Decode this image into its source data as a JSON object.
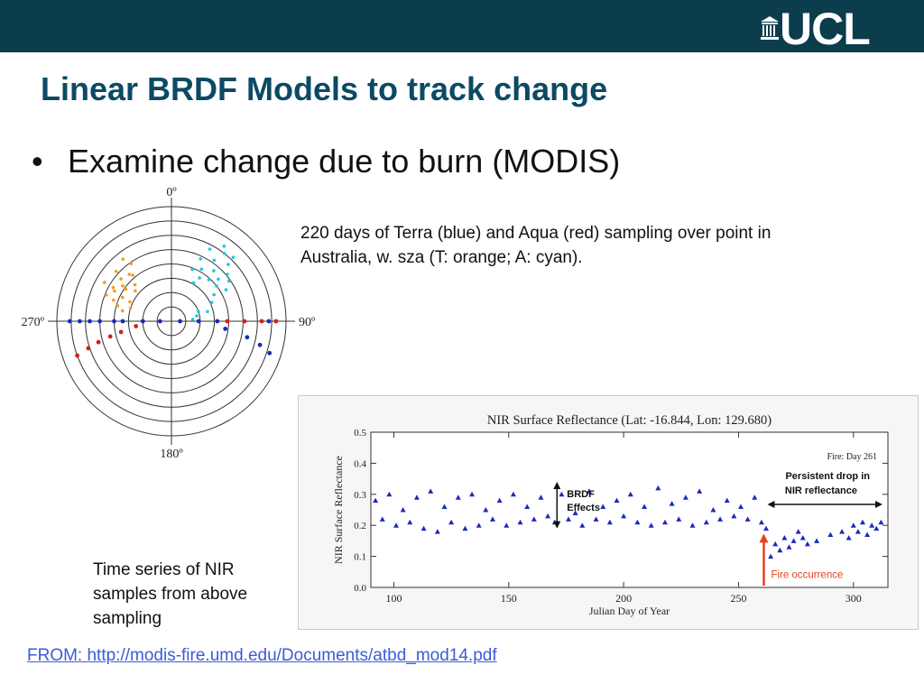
{
  "logo": {
    "text": "UCL"
  },
  "title": "Linear BRDF Models to track change",
  "bullet": "Examine change due to burn (MODIS)",
  "caption_top": "220 days of Terra (blue) and Aqua (red) sampling over point in Australia, w. sza (T: orange; A: cyan).",
  "caption_bottom": "Time series of NIR samples from above sampling",
  "from_link": "FROM: http://modis-fire.umd.edu/Documents/atbd_mod14.pdf",
  "colors": {
    "header_bar": "#0b3d4c",
    "title": "#0b4a64",
    "terra": "#1a2bb8",
    "aqua": "#d02020",
    "terra_sza": "#f0a020",
    "aqua_sza": "#20c8d8",
    "fire_arrow": "#e8401c",
    "link": "#3a5bd9"
  },
  "chart_data": [
    {
      "type": "scatter",
      "subtype": "polar",
      "angle_labels": [
        "0º",
        "90º",
        "180º",
        "270º"
      ],
      "rings": 8,
      "series": [
        {
          "color": "blue",
          "points": [
            [
              270,
              7.1
            ],
            [
              270,
              6.4
            ],
            [
              270,
              5.7
            ],
            [
              270,
              5.0
            ],
            [
              270,
              4.0
            ],
            [
              270,
              3.4
            ],
            [
              270,
              2.0
            ],
            [
              270,
              0.8
            ],
            [
              90,
              0.6
            ],
            [
              90,
              1.9
            ],
            [
              90,
              3.2
            ],
            [
              90,
              6.8
            ],
            [
              98,
              3.8
            ],
            [
              102,
              5.4
            ],
            [
              105,
              6.4
            ],
            [
              108,
              7.2
            ]
          ]
        },
        {
          "color": "red",
          "points": [
            [
              90,
              3.9
            ],
            [
              90,
              5.1
            ],
            [
              90,
              6.3
            ],
            [
              90,
              7.3
            ],
            [
              262,
              2.5
            ],
            [
              258,
              3.6
            ],
            [
              256,
              4.4
            ],
            [
              254,
              5.3
            ],
            [
              252,
              6.1
            ],
            [
              250,
              7.0
            ]
          ]
        },
        {
          "color": "orange",
          "points": [
            [
              320,
              4.2
            ],
            [
              310,
              4.6
            ],
            [
              300,
              4.7
            ],
            [
              290,
              4.3
            ],
            [
              282,
              3.5
            ],
            [
              315,
              3.6
            ],
            [
              305,
              3.9
            ],
            [
              296,
              3.8
            ],
            [
              288,
              3.0
            ],
            [
              325,
              4.9
            ],
            [
              312,
              5.2
            ],
            [
              300,
              5.4
            ],
            [
              292,
              4.9
            ],
            [
              318,
              4.4
            ],
            [
              306,
              4.2
            ],
            [
              298,
              4.5
            ],
            [
              286,
              3.9
            ],
            [
              310,
              3.3
            ],
            [
              322,
              5.5
            ],
            [
              295,
              3.2
            ]
          ]
        },
        {
          "color": "cyan",
          "points": [
            [
              30,
              4.2
            ],
            [
              40,
              4.6
            ],
            [
              50,
              5.1
            ],
            [
              35,
              5.2
            ],
            [
              45,
              5.6
            ],
            [
              28,
              5.7
            ],
            [
              38,
              6.0
            ],
            [
              48,
              4.4
            ],
            [
              55,
              4.9
            ],
            [
              25,
              4.8
            ],
            [
              33,
              3.6
            ],
            [
              42,
              3.9
            ],
            [
              52,
              4.0
            ],
            [
              60,
              4.4
            ],
            [
              70,
              2.0
            ],
            [
              78,
              1.8
            ],
            [
              85,
              1.5
            ],
            [
              75,
              2.6
            ],
            [
              65,
              3.1
            ],
            [
              58,
              3.5
            ],
            [
              35,
              6.4
            ],
            [
              44,
              6.2
            ],
            [
              30,
              3.1
            ],
            [
              22,
              3.9
            ]
          ]
        }
      ]
    },
    {
      "type": "scatter",
      "title": "NIR Surface Reflectance (Lat: -16.844, Lon: 129.680)",
      "xlabel": "Julian Day of Year",
      "ylabel": "NIR Surface Reflectance",
      "xlim": [
        90,
        315
      ],
      "ylim": [
        0.0,
        0.5
      ],
      "xticks": [
        100,
        150,
        200,
        250,
        300
      ],
      "yticks": [
        0.0,
        0.1,
        0.2,
        0.3,
        0.4,
        0.5
      ],
      "annotations": {
        "fire_day": "Fire: Day 261",
        "persistent_line1": "Persistent drop in",
        "persistent_line2": "NIR reflectance",
        "brdf_line1": "BRDF",
        "brdf_line2": "Effects",
        "fire_occurrence": "Fire occurrence"
      },
      "marker": "triangle",
      "series": [
        {
          "color": "blue",
          "x": [
            92,
            95,
            98,
            101,
            104,
            107,
            110,
            113,
            116,
            119,
            122,
            125,
            128,
            131,
            134,
            137,
            140,
            143,
            146,
            149,
            152,
            155,
            158,
            161,
            164,
            167,
            170,
            173,
            176,
            179,
            182,
            185,
            188,
            191,
            194,
            197,
            200,
            203,
            206,
            209,
            212,
            215,
            218,
            221,
            224,
            227,
            230,
            233,
            236,
            239,
            242,
            245,
            248,
            251,
            254,
            257,
            260,
            262,
            264,
            266,
            268,
            270,
            272,
            274,
            276,
            278,
            280,
            284,
            290,
            295,
            298,
            300,
            302,
            304,
            306,
            308,
            310,
            312
          ],
          "y": [
            0.28,
            0.22,
            0.3,
            0.2,
            0.25,
            0.21,
            0.29,
            0.19,
            0.31,
            0.18,
            0.26,
            0.21,
            0.29,
            0.19,
            0.3,
            0.2,
            0.25,
            0.22,
            0.28,
            0.2,
            0.3,
            0.21,
            0.26,
            0.22,
            0.29,
            0.23,
            0.21,
            0.3,
            0.22,
            0.24,
            0.2,
            0.31,
            0.22,
            0.26,
            0.21,
            0.28,
            0.23,
            0.3,
            0.21,
            0.26,
            0.2,
            0.32,
            0.21,
            0.27,
            0.22,
            0.29,
            0.2,
            0.31,
            0.21,
            0.25,
            0.22,
            0.28,
            0.23,
            0.26,
            0.22,
            0.29,
            0.21,
            0.19,
            0.1,
            0.14,
            0.12,
            0.16,
            0.13,
            0.15,
            0.18,
            0.16,
            0.14,
            0.15,
            0.17,
            0.18,
            0.16,
            0.2,
            0.18,
            0.21,
            0.17,
            0.2,
            0.19,
            0.21
          ]
        }
      ]
    }
  ]
}
